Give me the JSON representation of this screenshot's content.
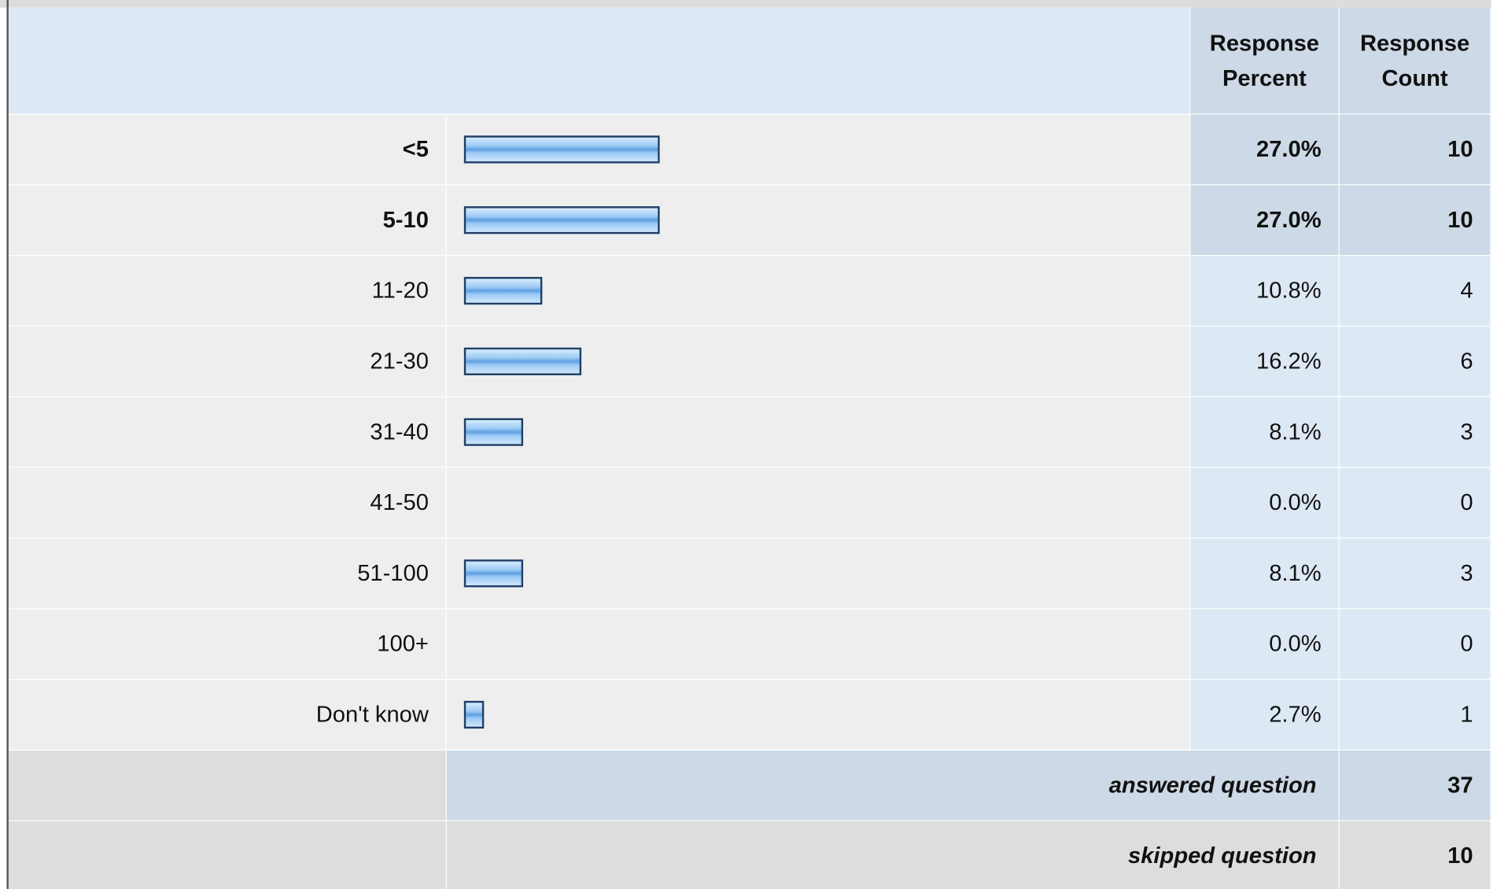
{
  "header": {
    "percent": "Response Percent",
    "count": "Response Count"
  },
  "rows": [
    {
      "label": "<5",
      "percent": 27.0,
      "percent_label": "27.0%",
      "count": 10
    },
    {
      "label": "5-10",
      "percent": 27.0,
      "percent_label": "27.0%",
      "count": 10
    },
    {
      "label": "11-20",
      "percent": 10.8,
      "percent_label": "10.8%",
      "count": 4
    },
    {
      "label": "21-30",
      "percent": 16.2,
      "percent_label": "16.2%",
      "count": 6
    },
    {
      "label": "31-40",
      "percent": 8.1,
      "percent_label": "8.1%",
      "count": 3
    },
    {
      "label": "41-50",
      "percent": 0.0,
      "percent_label": "0.0%",
      "count": 0
    },
    {
      "label": "51-100",
      "percent": 8.1,
      "percent_label": "8.1%",
      "count": 3
    },
    {
      "label": "100+",
      "percent": 0.0,
      "percent_label": "0.0%",
      "count": 0
    },
    {
      "label": "Don't know",
      "percent": 2.7,
      "percent_label": "2.7%",
      "count": 1
    }
  ],
  "answered": {
    "label": "answered question",
    "count": 37
  },
  "skipped": {
    "label": "skipped question",
    "count": 10
  }
}
